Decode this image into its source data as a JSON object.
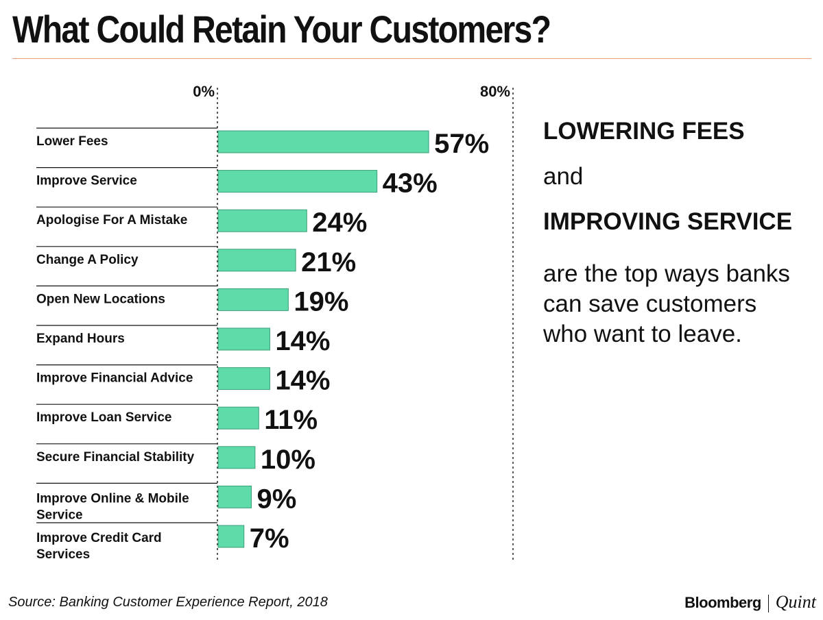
{
  "title": "What Could Retain Your Customers?",
  "chart_data": {
    "type": "bar",
    "orientation": "horizontal",
    "categories": [
      [
        "Lower Fees"
      ],
      [
        "Improve Service"
      ],
      [
        "Apologise For A Mistake"
      ],
      [
        "Change A Policy"
      ],
      [
        "Open New Locations"
      ],
      [
        "Expand Hours"
      ],
      [
        "Improve Financial Advice"
      ],
      [
        "Improve Loan Service"
      ],
      [
        "Secure Financial Stability"
      ],
      [
        "Improve Online & Mobile",
        "Service"
      ],
      [
        "Improve Credit Card",
        "Services"
      ]
    ],
    "values": [
      57,
      43,
      24,
      21,
      19,
      14,
      14,
      11,
      10,
      9,
      7
    ],
    "value_labels": [
      "57%",
      "43%",
      "24%",
      "21%",
      "19%",
      "14%",
      "14%",
      "11%",
      "10%",
      "9%",
      "7%"
    ],
    "xlim": [
      0,
      80
    ],
    "x_tick_labels": [
      "0%",
      "80%"
    ],
    "bar_color": "#5fdbaa",
    "grid": false
  },
  "callout": {
    "highlight_1": "LOWERING FEES",
    "connector": "and",
    "highlight_2": "IMPROVING SERVICE",
    "body": "are the top ways banks can save customers who want to leave."
  },
  "source": "Source: Banking Customer Experience Report, 2018",
  "logo": {
    "primary": "Bloomberg",
    "secondary": "Quint"
  },
  "colors": {
    "accent_rule": "#e8a07a",
    "text": "#111111",
    "bar": "#5fdbaa"
  }
}
